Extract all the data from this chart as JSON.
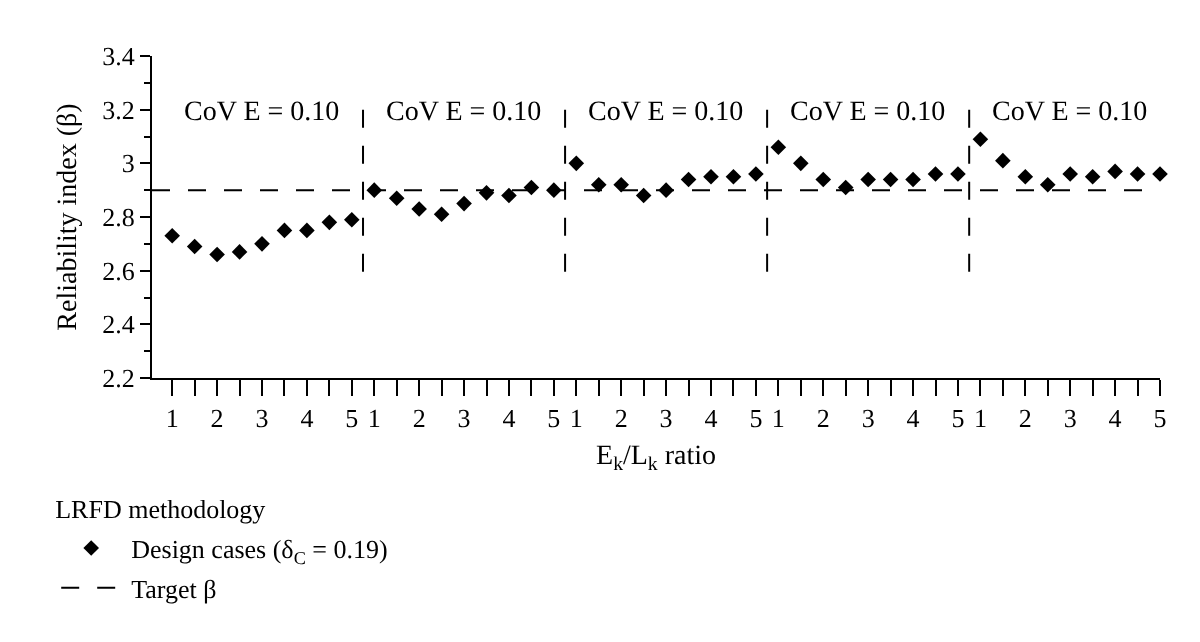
{
  "chart_data": {
    "type": "scatter",
    "xlabel": "E$_{k}$/L$_{k}$ ratio",
    "ylabel": "Reliability index (β)",
    "legend_title": "LRFD methodology",
    "categories": [
      "1",
      null,
      "2",
      null,
      "3",
      null,
      "4",
      null,
      "5",
      "1",
      null,
      "2",
      null,
      "3",
      null,
      "4",
      null,
      "5",
      "1",
      null,
      "2",
      null,
      "3",
      null,
      "4",
      null,
      "5",
      "1",
      null,
      "2",
      null,
      "3",
      null,
      "4",
      null,
      "5",
      "1",
      null,
      "2",
      null,
      "3",
      null,
      "4",
      null,
      "5"
    ],
    "series": [
      {
        "name": "Design cases (δ$_{C}$ = 0.19)",
        "color": "#000000",
        "values": [
          2.73,
          2.69,
          2.66,
          2.67,
          2.7,
          2.75,
          2.75,
          2.78,
          2.79,
          2.9,
          2.87,
          2.83,
          2.81,
          2.85,
          2.89,
          2.88,
          2.91,
          2.9,
          3.0,
          2.92,
          2.92,
          2.88,
          2.9,
          2.94,
          2.95,
          2.95,
          2.96,
          3.06,
          3.0,
          2.94,
          2.91,
          2.94,
          2.94,
          2.94,
          2.96,
          2.96,
          3.09,
          3.01,
          2.95,
          2.92,
          2.96,
          2.95,
          2.97,
          2.96,
          2.96
        ]
      }
    ],
    "marker": "diamond",
    "grid": false,
    "legend": "bottom left",
    "ylim": [
      2.2,
      3.4
    ],
    "yticks": [
      2.2,
      2.4,
      2.6,
      2.8,
      3,
      3.2,
      3.4
    ],
    "ref_lines": [
      {
        "axis": "y",
        "value": 2.9,
        "label": "Target β",
        "color": "#000000",
        "line_style": "dashed"
      }
    ],
    "annotations": [
      "CoV E = 0.10",
      "CoV E = 0.10",
      "CoV E = 0.10",
      "CoV E = 0.10",
      "CoV E = 0.10"
    ]
  }
}
